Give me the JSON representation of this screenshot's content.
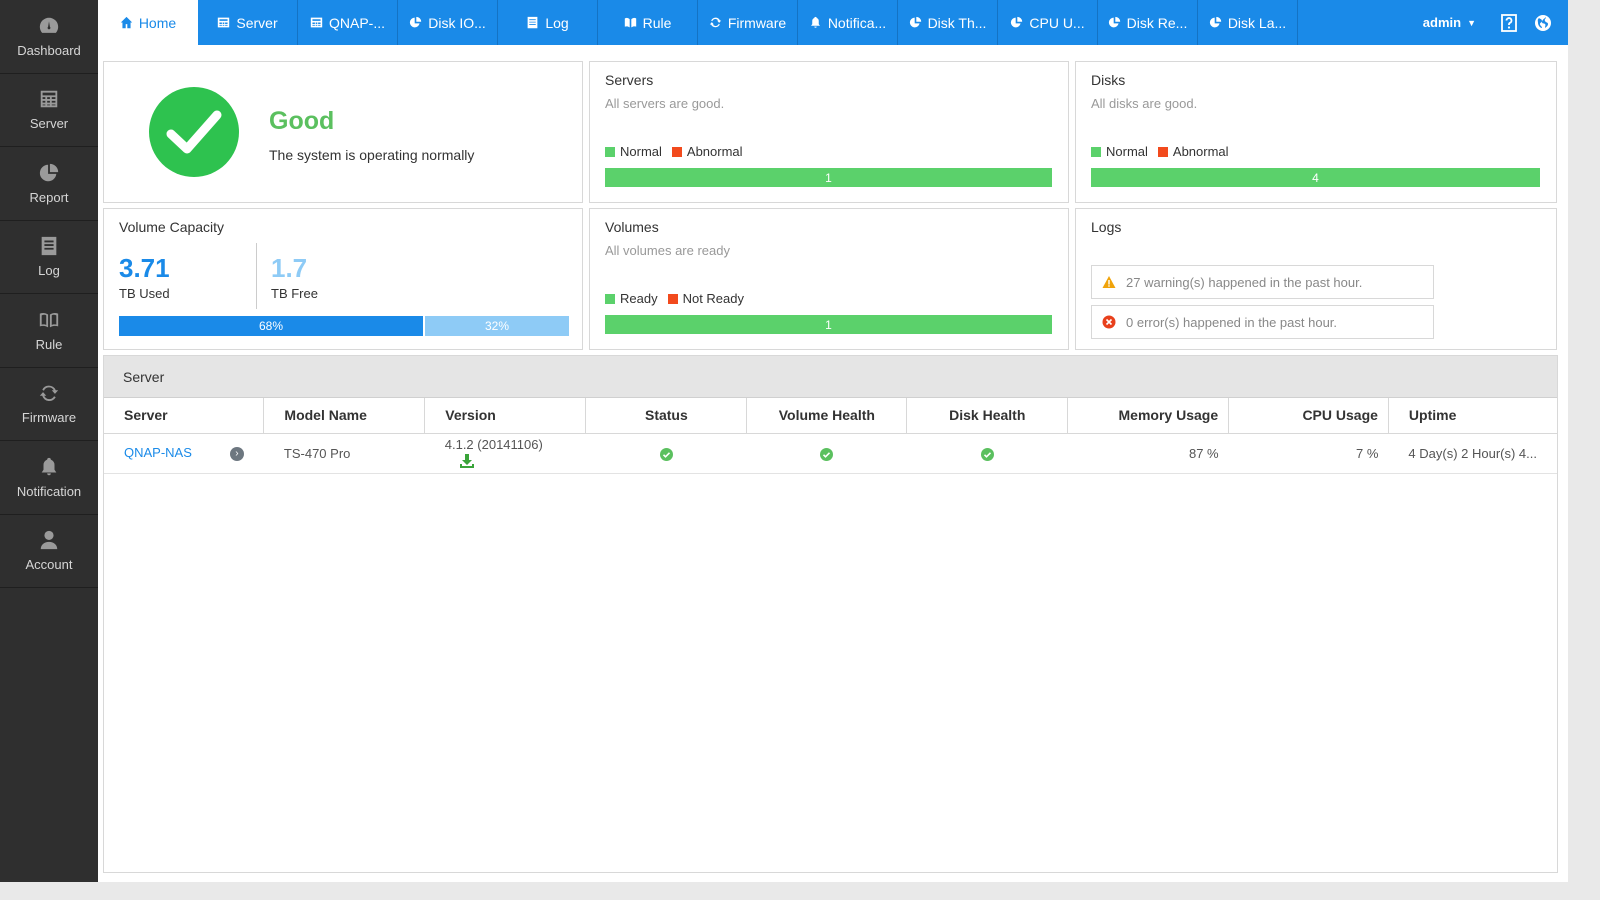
{
  "sidebar": {
    "items": [
      {
        "label": "Dashboard",
        "icon": "gauge-icon"
      },
      {
        "label": "Server",
        "icon": "server-icon"
      },
      {
        "label": "Report",
        "icon": "pie-chart-icon"
      },
      {
        "label": "Log",
        "icon": "document-icon"
      },
      {
        "label": "Rule",
        "icon": "book-icon"
      },
      {
        "label": "Firmware",
        "icon": "refresh-icon"
      },
      {
        "label": "Notification",
        "icon": "bell-icon"
      },
      {
        "label": "Account",
        "icon": "user-icon"
      }
    ]
  },
  "topbar": {
    "tabs": [
      {
        "label": "Home",
        "icon": "home-icon"
      },
      {
        "label": "Server",
        "icon": "server-icon"
      },
      {
        "label": "QNAP-...",
        "icon": "server-icon"
      },
      {
        "label": "Disk IO...",
        "icon": "pie-chart-icon"
      },
      {
        "label": "Log",
        "icon": "document-icon"
      },
      {
        "label": "Rule",
        "icon": "book-icon"
      },
      {
        "label": "Firmware",
        "icon": "refresh-icon"
      },
      {
        "label": "Notifica...",
        "icon": "bell-icon"
      },
      {
        "label": "Disk Th...",
        "icon": "pie-chart-icon"
      },
      {
        "label": "CPU U...",
        "icon": "pie-chart-icon"
      },
      {
        "label": "Disk Re...",
        "icon": "pie-chart-icon"
      },
      {
        "label": "Disk La...",
        "icon": "pie-chart-icon"
      }
    ],
    "user": "admin"
  },
  "status": {
    "title": "Good",
    "text": "The system is operating normally"
  },
  "servers": {
    "title": "Servers",
    "subtitle": "All servers are good.",
    "legend_normal": "Normal",
    "legend_abnormal": "Abnormal",
    "count": "1"
  },
  "disks": {
    "title": "Disks",
    "subtitle": "All disks are good.",
    "legend_normal": "Normal",
    "legend_abnormal": "Abnormal",
    "count": "4"
  },
  "capacity": {
    "title": "Volume Capacity",
    "used": "3.71",
    "used_label": "TB Used",
    "free": "1.7",
    "free_label": "TB Free",
    "used_pct": "68%",
    "free_pct": "32%"
  },
  "volumes": {
    "title": "Volumes",
    "subtitle": "All volumes are ready",
    "legend_ready": "Ready",
    "legend_not_ready": "Not Ready",
    "count": "1"
  },
  "logs": {
    "title": "Logs",
    "warning": "27 warning(s) happened in the past hour.",
    "error": "0 error(s) happened in the past hour."
  },
  "server_panel": {
    "title": "Server",
    "headers": [
      "Server",
      "Model Name",
      "Version",
      "Status",
      "Volume Health",
      "Disk Health",
      "Memory Usage",
      "CPU Usage",
      "Uptime"
    ],
    "row": {
      "server": "QNAP-NAS",
      "model": "TS-470 Pro",
      "version": "4.1.2 (20141106)",
      "memory": "87 %",
      "cpu": "7 %",
      "uptime": "4 Day(s) 2 Hour(s) 4..."
    }
  },
  "colors": {
    "accent": "#1a8ae8",
    "normal": "#5bd16b",
    "abnormal": "#f24a1d",
    "good": "#2ec24f"
  }
}
